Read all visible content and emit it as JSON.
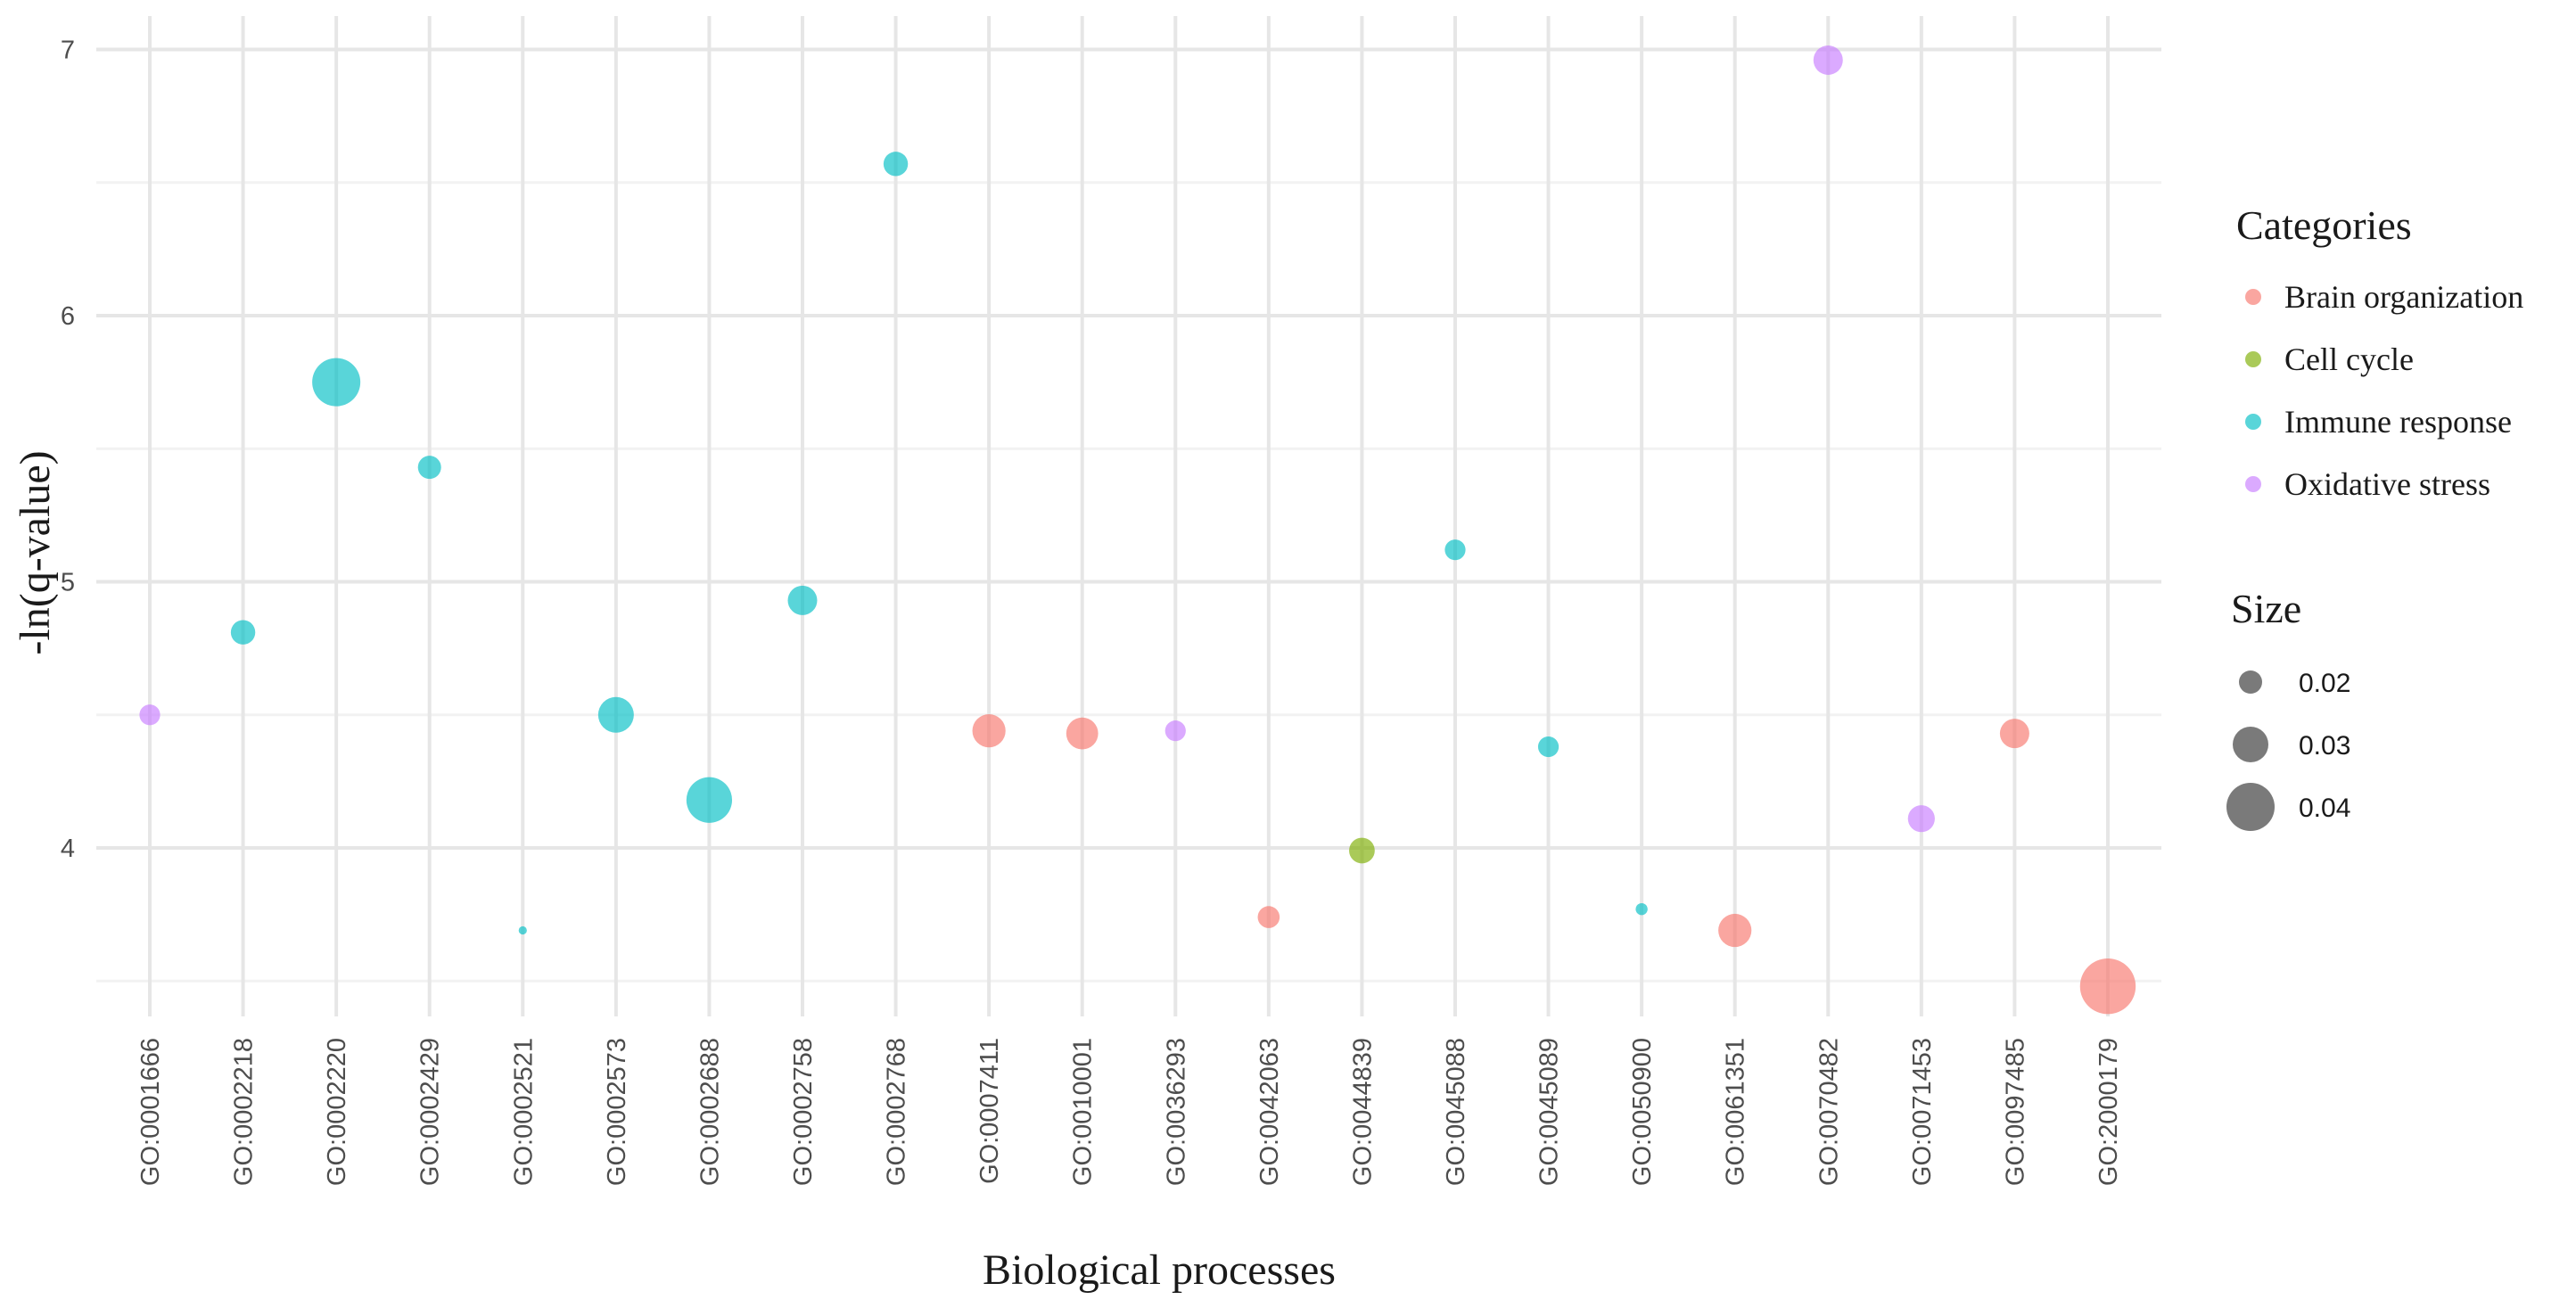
{
  "chart_data": {
    "type": "scatter",
    "xlabel": "Biological processes",
    "ylabel": "-ln(q-value)",
    "ylim": [
      3.33,
      7.12
    ],
    "yticks": [
      4,
      5,
      6,
      7
    ],
    "grid": true,
    "categories": [
      "GO:0001666",
      "GO:0002218",
      "GO:0002220",
      "GO:0002429",
      "GO:0002521",
      "GO:0002573",
      "GO:0002688",
      "GO:0002758",
      "GO:0002768",
      "GO:0007411",
      "GO:0010001",
      "GO:0036293",
      "GO:0042063",
      "GO:0044839",
      "GO:0045088",
      "GO:0045089",
      "GO:0050900",
      "GO:0061351",
      "GO:0070482",
      "GO:0071453",
      "GO:0097485",
      "GO:2000179"
    ],
    "points": [
      {
        "x": "GO:0001666",
        "y": 4.5,
        "size": 0.018,
        "category": "Oxidative stress"
      },
      {
        "x": "GO:0002218",
        "y": 4.81,
        "size": 0.021,
        "category": "Immune response"
      },
      {
        "x": "GO:0002220",
        "y": 5.75,
        "size": 0.04,
        "category": "Immune response"
      },
      {
        "x": "GO:0002429",
        "y": 5.43,
        "size": 0.02,
        "category": "Immune response"
      },
      {
        "x": "GO:0002521",
        "y": 3.69,
        "size": 0.008,
        "category": "Immune response"
      },
      {
        "x": "GO:0002573",
        "y": 4.5,
        "size": 0.03,
        "category": "Immune response"
      },
      {
        "x": "GO:0002688",
        "y": 4.18,
        "size": 0.038,
        "category": "Immune response"
      },
      {
        "x": "GO:0002758",
        "y": 4.93,
        "size": 0.025,
        "category": "Immune response"
      },
      {
        "x": "GO:0002768",
        "y": 6.57,
        "size": 0.021,
        "category": "Immune response"
      },
      {
        "x": "GO:0007411",
        "y": 4.44,
        "size": 0.028,
        "category": "Brain organization"
      },
      {
        "x": "GO:0010001",
        "y": 4.43,
        "size": 0.027,
        "category": "Brain organization"
      },
      {
        "x": "GO:0036293",
        "y": 4.44,
        "size": 0.018,
        "category": "Oxidative stress"
      },
      {
        "x": "GO:0042063",
        "y": 3.74,
        "size": 0.019,
        "category": "Brain organization"
      },
      {
        "x": "GO:0044839",
        "y": 3.99,
        "size": 0.022,
        "category": "Cell cycle"
      },
      {
        "x": "GO:0045088",
        "y": 5.12,
        "size": 0.018,
        "category": "Immune response"
      },
      {
        "x": "GO:0045089",
        "y": 4.38,
        "size": 0.018,
        "category": "Immune response"
      },
      {
        "x": "GO:0050900",
        "y": 3.77,
        "size": 0.011,
        "category": "Immune response"
      },
      {
        "x": "GO:0061351",
        "y": 3.69,
        "size": 0.028,
        "category": "Brain organization"
      },
      {
        "x": "GO:0070482",
        "y": 6.96,
        "size": 0.025,
        "category": "Oxidative stress"
      },
      {
        "x": "GO:0071453",
        "y": 4.11,
        "size": 0.023,
        "category": "Oxidative stress"
      },
      {
        "x": "GO:0097485",
        "y": 4.43,
        "size": 0.025,
        "category": "Brain organization"
      },
      {
        "x": "GO:2000179",
        "y": 3.48,
        "size": 0.046,
        "category": "Brain organization"
      }
    ],
    "legend": {
      "categories_title": "Categories",
      "categories": [
        {
          "name": "Brain organization",
          "color": "#F8766D"
        },
        {
          "name": "Cell cycle",
          "color": "#7CAE00"
        },
        {
          "name": "Immune response",
          "color": "#00BFC4"
        },
        {
          "name": "Oxidative stress",
          "color": "#C77CFF"
        }
      ],
      "size_title": "Size",
      "sizes": [
        {
          "value": 0.02,
          "label": "0.02"
        },
        {
          "value": 0.03,
          "label": "0.03"
        },
        {
          "value": 0.04,
          "label": "0.04"
        }
      ],
      "size_key_color": "#4d4d4d",
      "placement": "right"
    }
  }
}
